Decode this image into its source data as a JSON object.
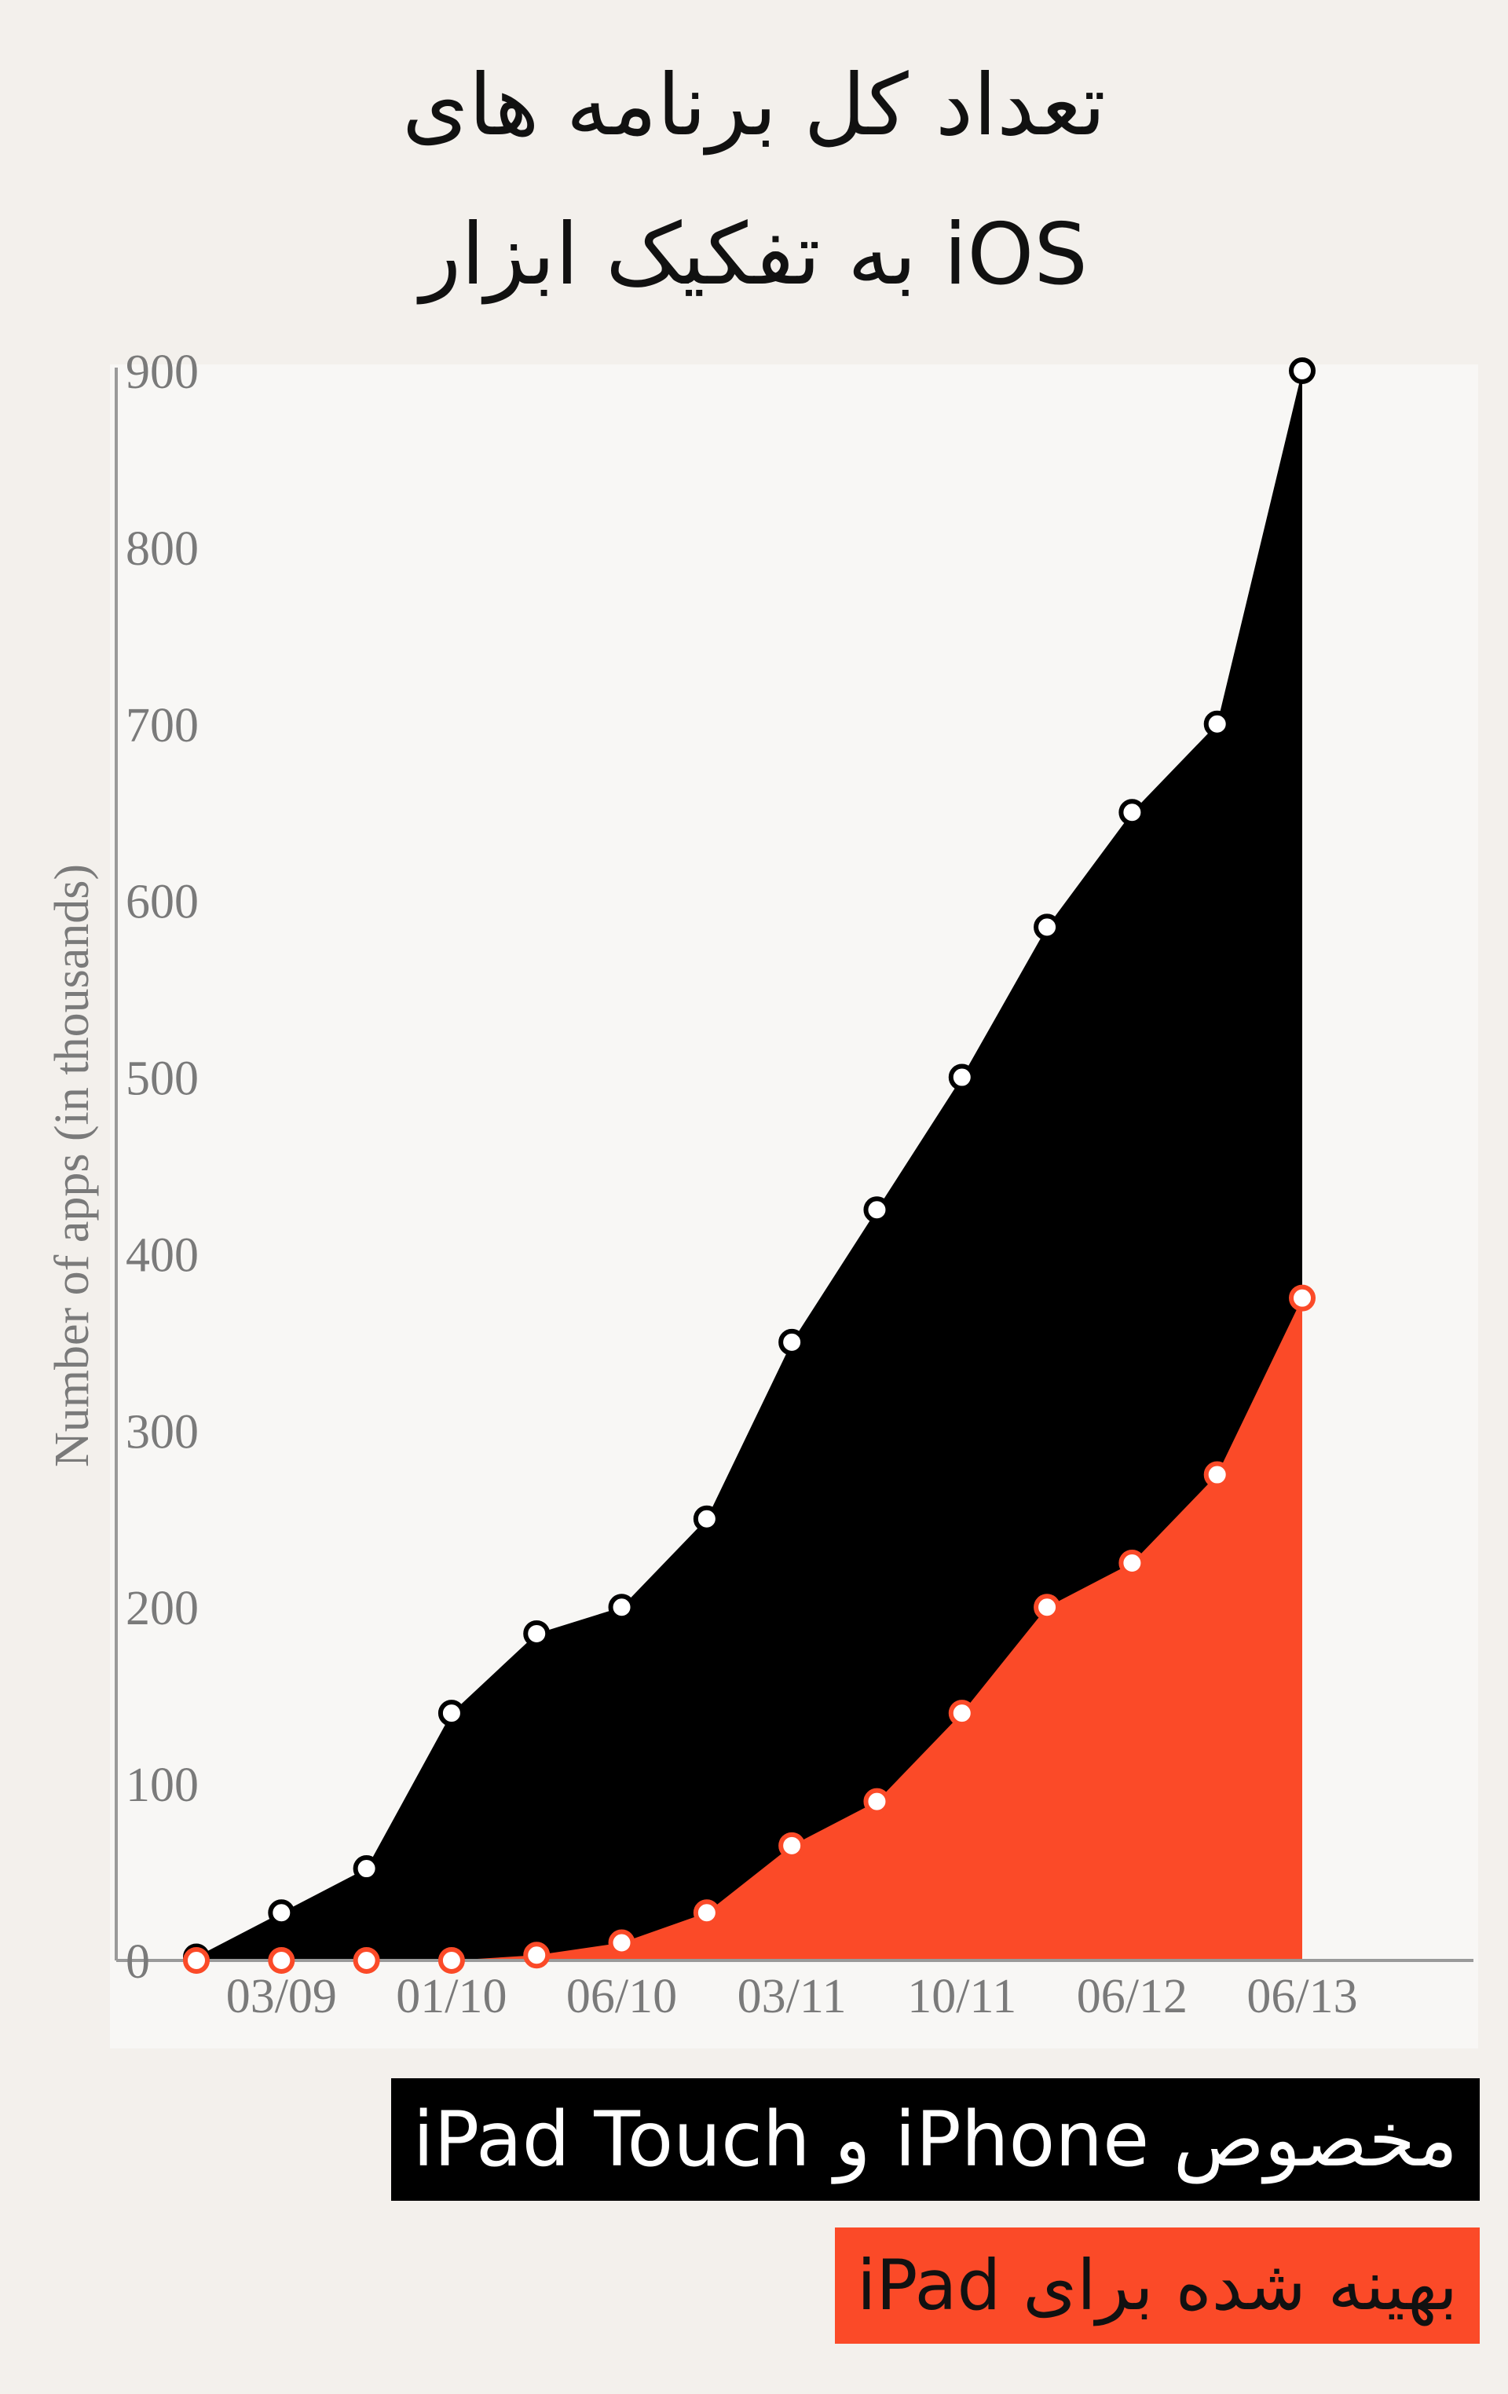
{
  "chart_data": {
    "type": "area",
    "title": "تعداد کل برنامه های iOS به تفکیک ابزار",
    "title_lines": [
      "تعداد کل برنامه های",
      "iOS به تفکیک ابزار"
    ],
    "ylabel": "Number of apps (in thousands)",
    "xlabel": "",
    "ylim": [
      0,
      900
    ],
    "yticks": [
      0,
      100,
      200,
      300,
      400,
      500,
      600,
      700,
      800,
      900
    ],
    "xtick_labels": [
      "03/09",
      "01/10",
      "06/10",
      "03/11",
      "10/11",
      "06/12",
      "06/13"
    ],
    "xtick_index": [
      1,
      3,
      5,
      7,
      9,
      11,
      13
    ],
    "point_count": 14,
    "series": [
      {
        "name": "مخصوص iPhone و iPad Touch",
        "color": "#000000",
        "values": [
          2,
          27,
          52,
          140,
          185,
          200,
          250,
          350,
          425,
          500,
          585,
          650,
          700,
          900
        ]
      },
      {
        "name": "بهینه شده برای iPad",
        "color": "#fb4a28",
        "values": [
          0,
          0,
          0,
          0,
          3,
          10,
          27,
          65,
          90,
          140,
          200,
          225,
          275,
          375
        ]
      }
    ],
    "grid": false,
    "legend_placement": "bottom-right"
  },
  "legend": {
    "black_label": "مخصوص iPhone و iPad Touch",
    "red_label": "بهینه شده برای iPad"
  }
}
